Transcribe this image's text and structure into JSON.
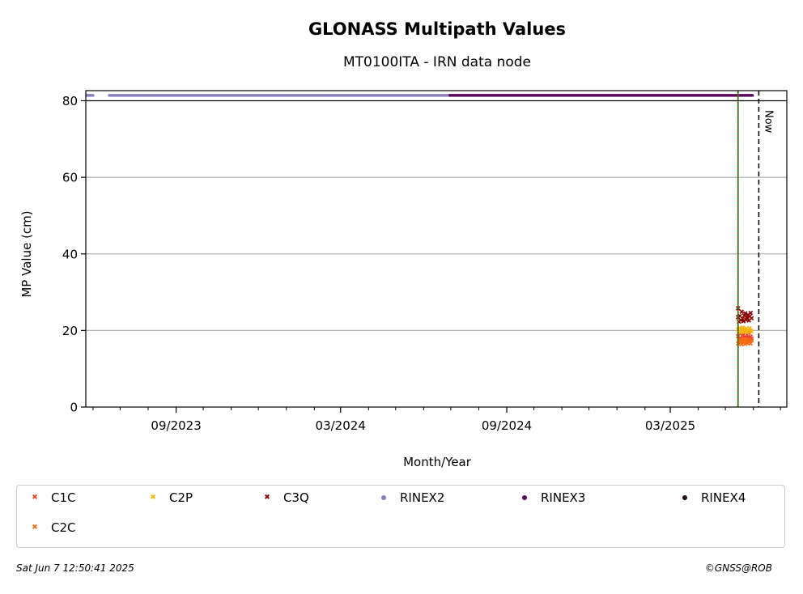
{
  "chart_data": {
    "type": "scatter",
    "title": "GLONASS Multipath Values",
    "subtitle": "MT0100ITA - IRN data node",
    "xlabel": "Month/Year",
    "ylabel": "MP Value (cm)",
    "ylim": [
      0,
      80
    ],
    "yticks": [
      0,
      20,
      40,
      60,
      80
    ],
    "xlim": [
      "2023-05-24",
      "2025-07-08"
    ],
    "xticks": [
      {
        "date": "2023-09-01",
        "label": "09/2023"
      },
      {
        "date": "2024-03-01",
        "label": "03/2024"
      },
      {
        "date": "2024-09-01",
        "label": "09/2024"
      },
      {
        "date": "2025-03-01",
        "label": "03/2025"
      }
    ],
    "grid": "horizontal",
    "now_label": "Now",
    "now_date": "2025-06-07",
    "green_line_date": "2025-05-15",
    "series": [
      {
        "name": "C1C",
        "marker": "x",
        "color": "#e8452d",
        "points": [
          [
            "2025-05-15",
            18.5
          ],
          [
            "2025-05-16",
            17.8
          ],
          [
            "2025-05-17",
            19.2
          ],
          [
            "2025-05-18",
            18.0
          ],
          [
            "2025-05-19",
            17.5
          ],
          [
            "2025-05-20",
            18.7
          ],
          [
            "2025-05-21",
            19.0
          ],
          [
            "2025-05-22",
            17.9
          ],
          [
            "2025-05-23",
            18.3
          ],
          [
            "2025-05-24",
            17.2
          ],
          [
            "2025-05-25",
            18.8
          ],
          [
            "2025-05-26",
            18.1
          ],
          [
            "2025-05-27",
            19.4
          ],
          [
            "2025-05-28",
            17.6
          ],
          [
            "2025-05-29",
            18.4
          ],
          [
            "2025-05-30",
            17.9
          ]
        ]
      },
      {
        "name": "C2C",
        "marker": "x",
        "color": "#f86a10",
        "points": [
          [
            "2025-05-15",
            16.6
          ],
          [
            "2025-05-16",
            17.2
          ],
          [
            "2025-05-17",
            16.8
          ],
          [
            "2025-05-18",
            17.5
          ],
          [
            "2025-05-19",
            16.4
          ],
          [
            "2025-05-20",
            17.0
          ],
          [
            "2025-05-21",
            17.8
          ],
          [
            "2025-05-22",
            16.9
          ],
          [
            "2025-05-23",
            16.5
          ],
          [
            "2025-05-24",
            17.3
          ],
          [
            "2025-05-25",
            16.7
          ],
          [
            "2025-05-26",
            17.6
          ],
          [
            "2025-05-27",
            16.9
          ],
          [
            "2025-05-28",
            17.1
          ],
          [
            "2025-05-29",
            16.6
          ],
          [
            "2025-05-30",
            17.4
          ]
        ]
      },
      {
        "name": "C2P",
        "marker": "x",
        "color": "#f8b40e",
        "points": [
          [
            "2025-05-15",
            20.3
          ],
          [
            "2025-05-16",
            19.8
          ],
          [
            "2025-05-17",
            20.6
          ],
          [
            "2025-05-18",
            19.5
          ],
          [
            "2025-05-19",
            20.1
          ],
          [
            "2025-05-20",
            20.8
          ],
          [
            "2025-05-21",
            19.7
          ],
          [
            "2025-05-22",
            20.4
          ],
          [
            "2025-05-23",
            19.9
          ],
          [
            "2025-05-24",
            20.5
          ],
          [
            "2025-05-25",
            19.6
          ],
          [
            "2025-05-26",
            20.2
          ],
          [
            "2025-05-27",
            19.8
          ],
          [
            "2025-05-28",
            20.6
          ],
          [
            "2025-05-29",
            20.0
          ],
          [
            "2025-05-30",
            19.7
          ]
        ]
      },
      {
        "name": "C3Q",
        "marker": "x",
        "color": "#8b0000",
        "points": [
          [
            "2025-05-15",
            25.8
          ],
          [
            "2025-05-15",
            23.5
          ],
          [
            "2025-05-16",
            22.3
          ],
          [
            "2025-05-17",
            23.8
          ],
          [
            "2025-05-18",
            22.7
          ],
          [
            "2025-05-19",
            24.9
          ],
          [
            "2025-05-20",
            23.1
          ],
          [
            "2025-05-21",
            22.4
          ],
          [
            "2025-05-22",
            23.9
          ],
          [
            "2025-05-23",
            24.5
          ],
          [
            "2025-05-24",
            22.8
          ],
          [
            "2025-05-25",
            23.4
          ],
          [
            "2025-05-26",
            24.1
          ],
          [
            "2025-05-27",
            22.6
          ],
          [
            "2025-05-28",
            23.7
          ],
          [
            "2025-05-29",
            24.6
          ],
          [
            "2025-05-30",
            23.2
          ]
        ]
      },
      {
        "name": "RINEX2",
        "marker": "dot",
        "color": "#8a80c0",
        "segments": [
          {
            "from": "2023-05-25",
            "to": "2023-06-01",
            "y": 81.4
          },
          {
            "from": "2023-06-19",
            "to": "2024-06-30",
            "y": 81.4
          }
        ]
      },
      {
        "name": "RINEX3",
        "marker": "dot",
        "color": "#5c0a5c",
        "segments": [
          {
            "from": "2024-06-30",
            "to": "2025-05-31",
            "y": 81.4
          }
        ]
      },
      {
        "name": "RINEX4",
        "marker": "dot",
        "color": "#1a0a1a",
        "segments": []
      }
    ]
  },
  "legend": {
    "items": [
      {
        "name": "C1C",
        "marker": "x",
        "color": "#e8452d"
      },
      {
        "name": "C2P",
        "marker": "x",
        "color": "#f8b40e"
      },
      {
        "name": "C3Q",
        "marker": "x",
        "color": "#8b0000"
      },
      {
        "name": "RINEX2",
        "marker": "dot",
        "color": "#8a80c0"
      },
      {
        "name": "RINEX3",
        "marker": "dot",
        "color": "#5c0a5c"
      },
      {
        "name": "RINEX4",
        "marker": "dot",
        "color": "#1a0a1a"
      },
      {
        "name": "C2C",
        "marker": "x",
        "color": "#f86a10"
      }
    ]
  },
  "footer": {
    "timestamp": "Sat Jun  7 12:50:41 2025",
    "credit": "©GNSS@ROB"
  }
}
